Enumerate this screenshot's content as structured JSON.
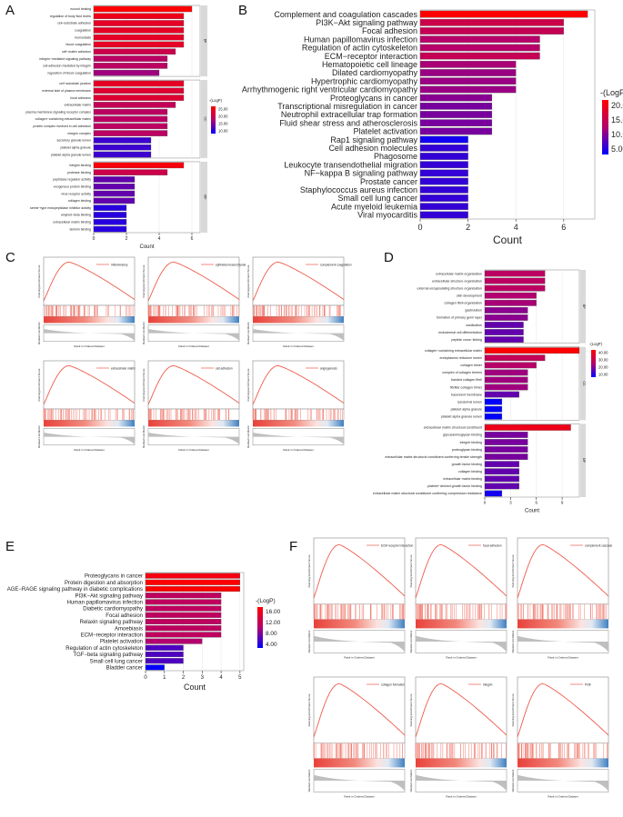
{
  "panels": {
    "A": "A",
    "B": "B",
    "C": "C",
    "D": "D",
    "E": "E",
    "F": "F"
  },
  "chart_data": [
    {
      "id": "A",
      "type": "bar",
      "title": "",
      "xlabel": "Count",
      "xlim": [
        0,
        6.5
      ],
      "xticks": [
        0,
        2,
        4,
        6
      ],
      "legend_title": "-(LogP)",
      "legend_ticks": [
        "25.00",
        "20.00",
        "15.00",
        "10.00"
      ],
      "color_range": [
        8,
        26
      ],
      "facets": [
        {
          "name": "BP",
          "categories": [
            "wound healing",
            "regulation of body fluid levels",
            "cell−substrate adhesion",
            "coagulation",
            "hemostasis",
            "blood coagulation",
            "cell−matrix adhesion",
            "integrin−mediated signaling pathway",
            "cell adhesion mediated by integrin",
            "regulation of blood coagulation"
          ],
          "values": [
            6,
            5.5,
            5.5,
            5.5,
            5.5,
            5.5,
            5,
            4.5,
            4.5,
            4
          ],
          "neglogp": [
            26,
            24,
            23,
            23,
            23,
            23,
            20,
            18,
            18,
            16
          ]
        },
        {
          "name": "CC",
          "categories": [
            "cell−substrate junction",
            "external side of plasma membrane",
            "focal adhesion",
            "extracellular matrix",
            "plasma membrane signaling receptor complex",
            "collagen−containing extracellular matrix",
            "protein complex involved in cell adhesion",
            "integrin complex",
            "secretory granule lumen",
            "platelet alpha granule",
            "platelet alpha granule lumen"
          ],
          "values": [
            5.5,
            5.5,
            5.5,
            5,
            4.5,
            4.5,
            4.5,
            4.5,
            3.5,
            3.5,
            3.5
          ],
          "neglogp": [
            23,
            22,
            22,
            19,
            18,
            18,
            18,
            18,
            11,
            11,
            11
          ]
        },
        {
          "name": "MF",
          "categories": [
            "integrin binding",
            "protease binding",
            "peptidase regulator activity",
            "exogenous protein binding",
            "virus receptor activity",
            "collagen binding",
            "serine−type endopeptidase inhibitor activity",
            "amyloid−beta binding",
            "extracellular matrix binding",
            "laminin binding"
          ],
          "values": [
            5.5,
            4.5,
            2.5,
            2.5,
            2.5,
            2.5,
            2,
            2,
            2,
            2
          ],
          "neglogp": [
            25,
            20,
            13,
            13,
            13,
            13,
            10,
            10,
            10,
            10
          ]
        }
      ]
    },
    {
      "id": "B",
      "type": "bar",
      "title": "",
      "xlabel": "Count",
      "xlim": [
        0,
        7.3
      ],
      "xticks": [
        0,
        2,
        4,
        6
      ],
      "legend_title": "-(LogP)",
      "legend_ticks": [
        "20.00",
        "15.00",
        "10.00",
        "5.00"
      ],
      "color_range": [
        3,
        24
      ],
      "categories": [
        "Complement and coagulation cascades",
        "PI3K−Akt signaling pathway",
        "Focal adhesion",
        "Human papillomavirus infection",
        "Regulation of actin cytoskeleton",
        "ECM−receptor interaction",
        "Hematopoietic cell lineage",
        "Dilated cardiomyopathy",
        "Hypertrophic cardiomyopathy",
        "Arrhythmogenic right ventricular cardiomyopathy",
        "Proteoglycans in cancer",
        "Transcriptional misregulation in cancer",
        "Neutrophil extracellular trap formation",
        "Fluid shear stress and atherosclerosis",
        "Platelet activation",
        "Rap1 signaling pathway",
        "Cell adhesion molecules",
        "Phagosome",
        "Leukocyte transendothelial migration",
        "NF−kappa B signaling pathway",
        "Prostate cancer",
        "Staphylococcus aureus infection",
        "Small cell lung cancer",
        "Acute myeloid leukemia",
        "Viral myocarditis"
      ],
      "values": [
        7,
        6,
        6,
        5,
        5,
        5,
        4,
        4,
        4,
        4,
        3,
        3,
        3,
        3,
        3,
        2,
        2,
        2,
        2,
        2,
        2,
        2,
        2,
        2,
        2
      ],
      "neglogp": [
        24,
        17,
        16,
        14,
        14,
        16,
        13,
        12,
        12,
        12,
        11,
        10,
        10,
        10,
        10,
        4,
        6,
        6,
        6,
        6,
        6,
        6,
        6,
        6,
        6
      ]
    },
    {
      "id": "D",
      "type": "bar",
      "title": "",
      "xlabel": "Count",
      "xlim": [
        0,
        11
      ],
      "xticks": [
        0,
        3,
        6,
        9
      ],
      "legend_title": "-(LogP)",
      "legend_ticks": [
        "40.00",
        "30.00",
        "20.00",
        "10.00"
      ],
      "color_range": [
        8,
        44
      ],
      "facets": [
        {
          "name": "BP",
          "categories": [
            "extracellular matrix organization",
            "extracellular structure organization",
            "external encapsulating structure organization",
            "skin development",
            "collagen fibril organization",
            "gastrulation",
            "formation of primary germ layer",
            "ossification",
            "endodermal cell differentiation",
            "peptide cross−linking"
          ],
          "values": [
            7,
            7,
            7,
            6,
            6,
            5,
            5,
            4.5,
            4.5,
            4.5
          ],
          "neglogp": [
            28,
            28,
            28,
            26,
            25,
            22,
            22,
            18,
            18,
            18
          ]
        },
        {
          "name": "CC",
          "categories": [
            "collagen−containing extracellular matrix",
            "endoplasmic reticulum lumen",
            "collagen trimer",
            "complex of collagen trimers",
            "banded collagen fibril",
            "fibrillar collagen trimer",
            "basement membrane",
            "lysosomal lumen",
            "platelet alpha granule",
            "platelet alpha granule lumen"
          ],
          "values": [
            11,
            7,
            6,
            5,
            5,
            5,
            4,
            2,
            2,
            2
          ],
          "neglogp": [
            44,
            30,
            27,
            24,
            24,
            24,
            18,
            8,
            8,
            8
          ]
        },
        {
          "name": "MF",
          "categories": [
            "extracellular matrix structural constituent",
            "glycosaminoglycan binding",
            "integrin binding",
            "proteoglycan binding",
            "extracellular matrix structural constituent conferring tensile strength",
            "growth factor binding",
            "collagen binding",
            "extracellular matrix binding",
            "platelet−derived growth factor binding",
            "extracellular matrix structural constituent conferring compression resistance"
          ],
          "values": [
            10,
            5,
            5,
            5,
            5,
            4,
            4,
            4,
            4,
            2
          ],
          "neglogp": [
            40,
            20,
            20,
            20,
            20,
            18,
            18,
            18,
            18,
            10
          ]
        }
      ]
    },
    {
      "id": "E",
      "type": "bar",
      "title": "",
      "xlabel": "Count",
      "xlim": [
        0,
        5.2
      ],
      "xticks": [
        0,
        1,
        2,
        3,
        4,
        5
      ],
      "legend_title": "-(LogP)",
      "legend_ticks": [
        "16.00",
        "12.00",
        "8.00",
        "4.00"
      ],
      "color_range": [
        3,
        17
      ],
      "categories": [
        "Proteoglycans in cancer",
        "Protein digestion and absorption",
        "AGE−RAGE signaling pathway in diabetic complications",
        "PI3K−Akt signaling pathway",
        "Human papillomavirus infection",
        "Diabetic cardiomyopathy",
        "Focal adhesion",
        "Relaxin signaling pathway",
        "Amoebiasis",
        "ECM−receptor interaction",
        "Platelet activation",
        "Regulation of actin cytoskeleton",
        "TGF−beta signaling pathway",
        "Small cell lung cancer",
        "Bladder cancer"
      ],
      "values": [
        5,
        5,
        5,
        4,
        4,
        4,
        4,
        4,
        4,
        4,
        3,
        2,
        2,
        2,
        1
      ],
      "neglogp": [
        16,
        17,
        17,
        11,
        11,
        11,
        11,
        11,
        11,
        11,
        10,
        6,
        6,
        6,
        3
      ]
    }
  ],
  "gsea_panels": [
    {
      "id": "C",
      "plots": [
        {
          "legend": "Inflammatory"
        },
        {
          "legend": "epithelial mesenchymal"
        },
        {
          "legend": "complement coagulation"
        },
        {
          "legend": "extracellular matrix"
        },
        {
          "legend": "cell adhesion"
        },
        {
          "legend": "angiogenesis"
        }
      ]
    },
    {
      "id": "F",
      "plots": [
        {
          "legend": "ECM receptor interaction"
        },
        {
          "legend": "focal adhesion"
        },
        {
          "legend": "complement cascade"
        },
        {
          "legend": "collagen formation"
        },
        {
          "legend": "integrin"
        },
        {
          "legend": "PI3K"
        }
      ]
    }
  ]
}
